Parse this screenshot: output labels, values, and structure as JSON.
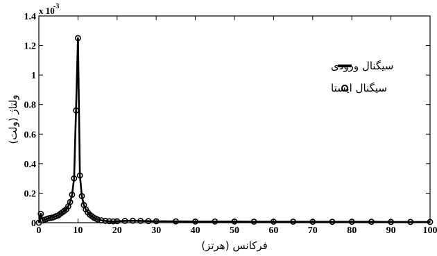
{
  "chart_data": {
    "type": "line",
    "title": "",
    "xlabel": "فرکانس (هرتز)",
    "ylabel": "ولتاژ (ولت)",
    "y_multiplier_label": "x 10",
    "y_multiplier_exponent": "-3",
    "xlim": [
      0,
      100
    ],
    "ylim": [
      0,
      1.4
    ],
    "xticks": [
      "0",
      "10",
      "20",
      "30",
      "40",
      "50",
      "60",
      "70",
      "80",
      "90",
      "100"
    ],
    "yticks": [
      "0",
      "0.2",
      "0.4",
      "0.6",
      "0.8",
      "1",
      "1.2",
      "1.4"
    ],
    "grid": false,
    "legend_position": "top-right",
    "series": [
      {
        "name": "سیگنال ورودی",
        "style": "line",
        "color": "#000000",
        "x": [
          0,
          0.5,
          1,
          1.5,
          2,
          2.5,
          3,
          3.5,
          4,
          4.5,
          5,
          5.5,
          6,
          6.5,
          7,
          7.5,
          8,
          8.5,
          9,
          9.5,
          10,
          10.5,
          11,
          11.5,
          12,
          12.5,
          13,
          13.5,
          14,
          14.5,
          15,
          16,
          17,
          18,
          19,
          20,
          22,
          24,
          26,
          28,
          30,
          35,
          40,
          45,
          50,
          55,
          60,
          65,
          70,
          75,
          80,
          85,
          90,
          95,
          100
        ],
        "values": [
          0,
          0.06,
          0.015,
          0.02,
          0.025,
          0.03,
          0.032,
          0.035,
          0.04,
          0.045,
          0.05,
          0.06,
          0.07,
          0.08,
          0.09,
          0.11,
          0.14,
          0.19,
          0.3,
          0.76,
          1.25,
          0.32,
          0.18,
          0.12,
          0.09,
          0.07,
          0.055,
          0.045,
          0.035,
          0.028,
          0.022,
          0.016,
          0.012,
          0.01,
          0.009,
          0.01,
          0.012,
          0.013,
          0.012,
          0.011,
          0.01,
          0.009,
          0.008,
          0.008,
          0.008,
          0.007,
          0.007,
          0.007,
          0.006,
          0.006,
          0.006,
          0.006,
          0.005,
          0.005,
          0.005
        ]
      },
      {
        "name": "سیگنال ایستا",
        "style": "markers",
        "color": "#000000",
        "x": [
          0,
          0.5,
          1,
          1.5,
          2,
          2.5,
          3,
          3.5,
          4,
          4.5,
          5,
          5.5,
          6,
          6.5,
          7,
          7.5,
          8,
          8.5,
          9,
          9.5,
          10,
          10.5,
          11,
          11.5,
          12,
          12.5,
          13,
          13.5,
          14,
          14.5,
          15,
          16,
          17,
          18,
          19,
          20,
          22,
          24,
          26,
          28,
          30,
          35,
          40,
          45,
          50,
          55,
          60,
          65,
          70,
          75,
          80,
          85,
          90,
          95,
          100
        ],
        "values": [
          0,
          0.06,
          0.015,
          0.02,
          0.025,
          0.03,
          0.032,
          0.035,
          0.04,
          0.045,
          0.05,
          0.06,
          0.07,
          0.08,
          0.09,
          0.11,
          0.14,
          0.19,
          0.3,
          0.76,
          1.25,
          0.32,
          0.18,
          0.12,
          0.09,
          0.07,
          0.055,
          0.045,
          0.035,
          0.028,
          0.022,
          0.016,
          0.012,
          0.01,
          0.009,
          0.01,
          0.012,
          0.013,
          0.012,
          0.011,
          0.01,
          0.009,
          0.008,
          0.008,
          0.008,
          0.007,
          0.007,
          0.007,
          0.006,
          0.006,
          0.006,
          0.006,
          0.005,
          0.005,
          0.005
        ]
      }
    ]
  }
}
